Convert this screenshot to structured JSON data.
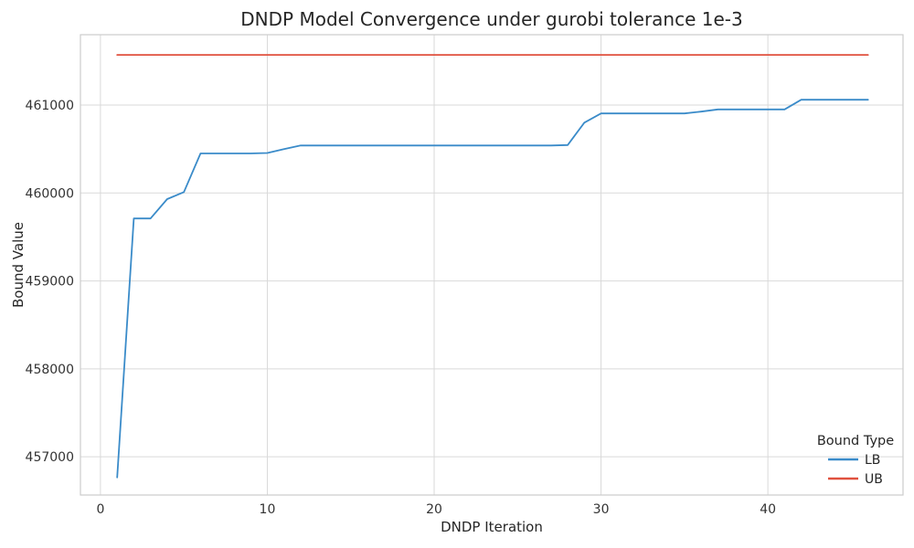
{
  "chart_data": {
    "type": "line",
    "title": "DNDP Model Convergence under gurobi tolerance 1e-3",
    "xlabel": "DNDP Iteration",
    "ylabel": "Bound Value",
    "xlim": [
      -1.2,
      48.1
    ],
    "ylim": [
      456565,
      461800
    ],
    "xticks": [
      0,
      10,
      20,
      30,
      40
    ],
    "yticks": [
      457000,
      458000,
      459000,
      460000,
      461000
    ],
    "grid": true,
    "legend": {
      "title": "Bound Type",
      "position": "lower right",
      "entries": [
        {
          "label": "LB",
          "color": "#3a8bc9"
        },
        {
          "label": "UB",
          "color": "#e0503e"
        }
      ]
    },
    "x": [
      1,
      2,
      3,
      4,
      5,
      6,
      7,
      8,
      9,
      10,
      11,
      12,
      13,
      14,
      15,
      16,
      17,
      18,
      19,
      20,
      21,
      22,
      23,
      24,
      25,
      26,
      27,
      28,
      29,
      30,
      31,
      32,
      33,
      34,
      35,
      36,
      37,
      38,
      39,
      40,
      41,
      42,
      43,
      44,
      45,
      46
    ],
    "series": [
      {
        "name": "LB",
        "color": "#3a8bc9",
        "values": [
          456765,
          459710,
          459710,
          459930,
          460010,
          460450,
          460450,
          460450,
          460450,
          460455,
          460500,
          460540,
          460540,
          460540,
          460540,
          460540,
          460540,
          460540,
          460540,
          460540,
          460540,
          460540,
          460540,
          460540,
          460540,
          460540,
          460540,
          460545,
          460800,
          460905,
          460905,
          460905,
          460905,
          460905,
          460905,
          460925,
          460950,
          460950,
          460950,
          460950,
          460950,
          461060,
          461060,
          461060,
          461060,
          461060
        ]
      },
      {
        "name": "UB",
        "color": "#e0503e",
        "values": [
          461570,
          461570,
          461570,
          461570,
          461570,
          461570,
          461570,
          461570,
          461570,
          461570,
          461570,
          461570,
          461570,
          461570,
          461570,
          461570,
          461570,
          461570,
          461570,
          461570,
          461570,
          461570,
          461570,
          461570,
          461570,
          461570,
          461570,
          461570,
          461570,
          461570,
          461570,
          461570,
          461570,
          461570,
          461570,
          461570,
          461570,
          461570,
          461570,
          461570,
          461570,
          461570,
          461570,
          461570,
          461570,
          461570
        ]
      }
    ],
    "style": {
      "grid_color": "#d9d9d9",
      "spine_color": "#cccccc",
      "background": "#ffffff"
    }
  }
}
